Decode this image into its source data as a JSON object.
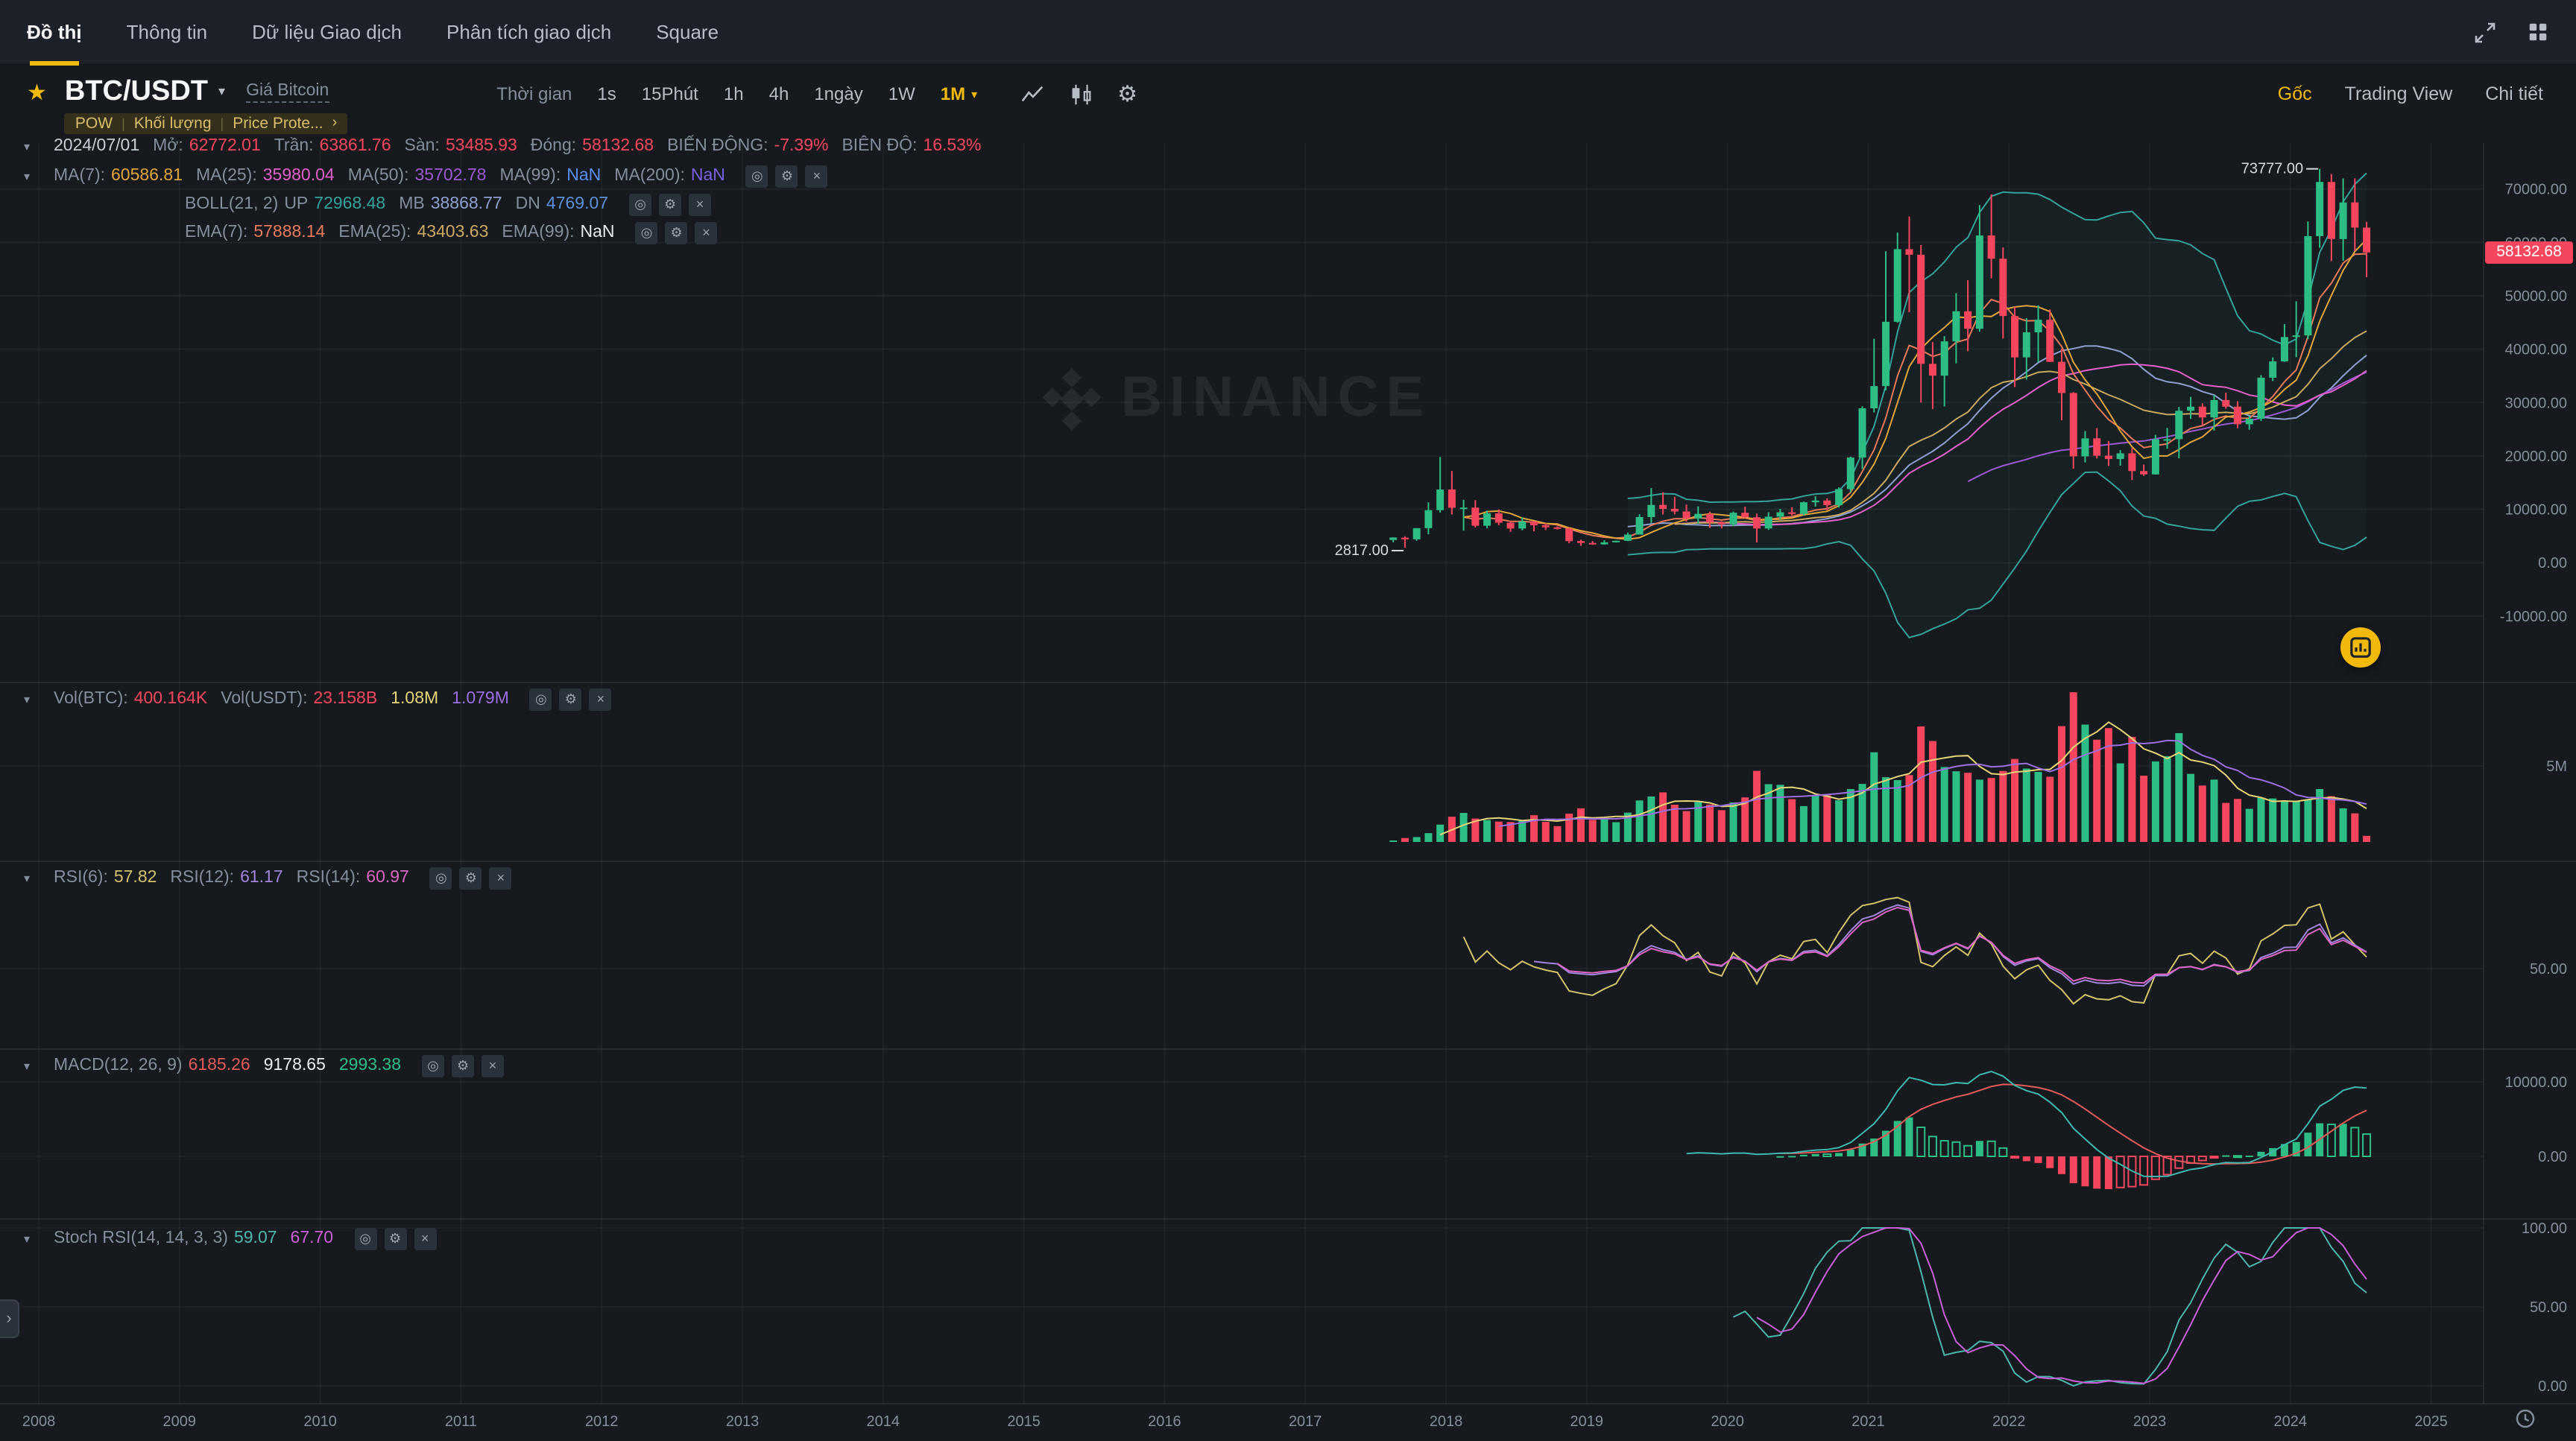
{
  "nav": {
    "items": [
      {
        "label": "Đồ thị",
        "active": true
      },
      {
        "label": "Thông tin"
      },
      {
        "label": "Dữ liệu Giao dịch"
      },
      {
        "label": "Phân tích giao dịch"
      },
      {
        "label": "Square"
      }
    ]
  },
  "toolbar": {
    "symbol": "BTC/USDT",
    "symbol_sub": "Giá Bitcoin",
    "tags": [
      "POW",
      "Khối lượng",
      "Price Prote..."
    ],
    "time_label": "Thời gian",
    "intervals": [
      "1s",
      "15Phút",
      "1h",
      "4h",
      "1ngày",
      "1W",
      "1M"
    ],
    "selected_interval": "1M",
    "right_links": [
      "Gốc",
      "Trading View",
      "Chi tiết"
    ]
  },
  "watermark": "BINANCE",
  "legends": {
    "ohlc": [
      {
        "t": "2024/07/01",
        "c": "#C7CDD6"
      },
      {
        "t": "Mở:",
        "c": "label"
      },
      {
        "t": "62772.01",
        "c": "#F6465D"
      },
      {
        "t": "Trần:",
        "c": "label"
      },
      {
        "t": "63861.76",
        "c": "#F6465D"
      },
      {
        "t": "Sàn:",
        "c": "label"
      },
      {
        "t": "53485.93",
        "c": "#F6465D"
      },
      {
        "t": "Đóng:",
        "c": "label"
      },
      {
        "t": "58132.68",
        "c": "#F6465D"
      },
      {
        "t": "BIẾN ĐỘNG:",
        "c": "label"
      },
      {
        "t": "-7.39%",
        "c": "#F6465D"
      },
      {
        "t": "BIÊN ĐỘ:",
        "c": "label"
      },
      {
        "t": "16.53%",
        "c": "#F6465D"
      }
    ],
    "ma": [
      {
        "t": "MA(7):",
        "c": "label"
      },
      {
        "t": "60586.81",
        "c": "#E0A43C"
      },
      {
        "t": "MA(25):",
        "c": "label"
      },
      {
        "t": "35980.04",
        "c": "#E25FC8"
      },
      {
        "t": "MA(50):",
        "c": "label"
      },
      {
        "t": "35702.78",
        "c": "#9B59D0"
      },
      {
        "t": "MA(99):",
        "c": "label"
      },
      {
        "t": "NaN",
        "c": "#5A8FF0"
      },
      {
        "t": "MA(200):",
        "c": "label"
      },
      {
        "t": "NaN",
        "c": "#7B5FE0"
      }
    ],
    "boll": [
      {
        "t": "BOLL(21, 2)",
        "c": "label"
      },
      {
        "t": "UP",
        "c": "label"
      },
      {
        "t": "72968.48",
        "c": "#35A29A"
      },
      {
        "t": "MB",
        "c": "label"
      },
      {
        "t": "38868.77",
        "c": "#8F9FD0"
      },
      {
        "t": "DN",
        "c": "label"
      },
      {
        "t": "4769.07",
        "c": "#5A8FD6"
      }
    ],
    "ema": [
      {
        "t": "EMA(7):",
        "c": "label"
      },
      {
        "t": "57888.14",
        "c": "#E8795A"
      },
      {
        "t": "EMA(25):",
        "c": "label"
      },
      {
        "t": "43403.63",
        "c": "#C9A861"
      },
      {
        "t": "EMA(99):",
        "c": "label"
      },
      {
        "t": "NaN",
        "c": "#EAECEF"
      }
    ],
    "vol": [
      {
        "t": "Vol(BTC):",
        "c": "label"
      },
      {
        "t": "400.164K",
        "c": "#F6465D"
      },
      {
        "t": "Vol(USDT):",
        "c": "label"
      },
      {
        "t": "23.158B",
        "c": "#F6465D"
      },
      {
        "t": "1.08M",
        "c": "#E5D478"
      },
      {
        "t": "1.079M",
        "c": "#9B6FE0"
      }
    ],
    "rsi": [
      {
        "t": "RSI(6):",
        "c": "label"
      },
      {
        "t": "57.82",
        "c": "#D3C26C"
      },
      {
        "t": "RSI(12):",
        "c": "label"
      },
      {
        "t": "61.17",
        "c": "#A184DB"
      },
      {
        "t": "RSI(14):",
        "c": "label"
      },
      {
        "t": "60.97",
        "c": "#DA65C3"
      }
    ],
    "macd": [
      {
        "t": "MACD(12, 26, 9)",
        "c": "label"
      },
      {
        "t": "6185.26",
        "c": "#E25A5A"
      },
      {
        "t": "9178.65",
        "c": "#EAECEF"
      },
      {
        "t": "2993.38",
        "c": "#2EBD85"
      }
    ],
    "stoch": [
      {
        "t": "Stoch RSI(14, 14, 3, 3)",
        "c": "label"
      },
      {
        "t": "59.07",
        "c": "#4DB6AC"
      },
      {
        "t": "67.70",
        "c": "#C75FD6"
      }
    ]
  },
  "axis": {
    "current_price": "58132.68",
    "price_ticks": [
      {
        "v": 70000,
        "label": "70000.00"
      },
      {
        "v": 60000,
        "label": "60000.00"
      },
      {
        "v": 50000,
        "label": "50000.00"
      },
      {
        "v": 40000,
        "label": "40000.00"
      },
      {
        "v": 30000,
        "label": "30000.00"
      },
      {
        "v": 20000,
        "label": "20000.00"
      },
      {
        "v": 10000,
        "label": "10000.00"
      },
      {
        "v": 0,
        "label": "0.00"
      },
      {
        "v": -10000,
        "label": "-10000.00"
      }
    ],
    "vol_tick": {
      "v": 5,
      "label": "5M"
    },
    "rsi_tick": {
      "v": 50,
      "label": "50.00"
    },
    "macd_ticks": [
      {
        "v": 10000,
        "label": "10000.00"
      },
      {
        "v": 0,
        "label": "0.00"
      }
    ],
    "stoch_ticks": [
      {
        "v": 100,
        "label": "100.00"
      },
      {
        "v": 50,
        "label": "50.00"
      },
      {
        "v": 0,
        "label": "0.00"
      }
    ],
    "years": [
      "2008",
      "2009",
      "2010",
      "2011",
      "2012",
      "2013",
      "2014",
      "2015",
      "2016",
      "2017",
      "2018",
      "2019",
      "2020",
      "2021",
      "2022",
      "2023",
      "2024",
      "2025"
    ]
  },
  "annotations": {
    "high": {
      "t": "2024-03",
      "price": 73777,
      "label": "73777.00"
    },
    "low": {
      "t": "2017-09",
      "price": 2817,
      "label": "2817.00"
    }
  },
  "colors": {
    "accent": "#F0B90B",
    "up": "#2EBD85",
    "down": "#F6465D",
    "ma7": "#E0A43C",
    "ma25": "#E25FC8",
    "ma50": "#9B59D0",
    "ema7": "#E8795A",
    "ema25": "#C9A861",
    "boll": "#35A29A",
    "boll_mid": "#8F9FD0",
    "vol_ma5": "#E5D478",
    "vol_ma10": "#9B6FE0",
    "rsi6": "#D3C26C",
    "rsi12": "#A184DB",
    "rsi14": "#DA65C3",
    "macd_dif": "#3FB8AF",
    "macd_dea": "#E25A5A",
    "stoch_k": "#4DB6AC",
    "stoch_d": "#C75FD6",
    "axis_text": "#848E9C"
  },
  "chart_data": {
    "type": "candlestick",
    "symbol": "BTC/USDT",
    "interval": "1M",
    "overlays": [
      "MA(7)",
      "MA(25)",
      "MA(50)",
      "BOLL(21,2)",
      "EMA(7)",
      "EMA(25)"
    ],
    "panes": [
      "price",
      "volume",
      "RSI(6,12,14)",
      "MACD(12,26,9)",
      "StochRSI(14,14,3,3)"
    ],
    "x_range": [
      2008,
      2025
    ],
    "price_range": [
      -10000,
      75000
    ],
    "candles": [
      [
        "2017-08",
        4261,
        4745,
        3822,
        4724,
        0.09
      ],
      [
        "2017-09",
        4689,
        4939,
        2817,
        4378,
        0.26
      ],
      [
        "2017-10",
        4378,
        6498,
        4110,
        6468,
        0.32
      ],
      [
        "2017-11",
        6463,
        11300,
        5325,
        9838,
        0.58
      ],
      [
        "2017-12",
        9837,
        19798,
        9380,
        13716,
        1.14
      ],
      [
        "2018-01",
        13715,
        17176,
        9035,
        10285,
        1.66
      ],
      [
        "2018-02",
        10285,
        11786,
        6000,
        10326,
        1.91
      ],
      [
        "2018-03",
        10325,
        11710,
        6600,
        6923,
        1.54
      ],
      [
        "2018-04",
        6922,
        9759,
        6430,
        9246,
        1.44
      ],
      [
        "2018-05",
        9246,
        9964,
        7032,
        7494,
        1.34
      ],
      [
        "2018-06",
        7494,
        7779,
        5780,
        6404,
        1.31
      ],
      [
        "2018-07",
        6404,
        8491,
        6070,
        7735,
        1.44
      ],
      [
        "2018-08",
        7735,
        7750,
        5880,
        7011,
        1.76
      ],
      [
        "2018-09",
        7011,
        7410,
        6111,
        6626,
        1.32
      ],
      [
        "2018-10",
        6626,
        6810,
        6205,
        6371,
        1.04
      ],
      [
        "2018-11",
        6369,
        6554,
        3652,
        4041,
        1.86
      ],
      [
        "2018-12",
        4041,
        4312,
        3156,
        3702,
        2.21
      ],
      [
        "2019-01",
        3701,
        4069,
        3349,
        3434,
        1.45
      ],
      [
        "2019-02",
        3434,
        4198,
        3373,
        3814,
        1.55
      ],
      [
        "2019-03",
        3814,
        4129,
        3790,
        4103,
        1.3
      ],
      [
        "2019-04",
        4103,
        5627,
        4054,
        5269,
        1.93
      ],
      [
        "2019-05",
        5269,
        9074,
        5266,
        8555,
        2.73
      ],
      [
        "2019-06",
        8555,
        13970,
        7432,
        10818,
        2.99
      ],
      [
        "2019-07",
        10818,
        13200,
        9049,
        10080,
        3.26
      ],
      [
        "2019-08",
        10080,
        12316,
        9071,
        9594,
        2.45
      ],
      [
        "2019-09",
        9594,
        10898,
        7700,
        8293,
        2.03
      ],
      [
        "2019-10",
        8293,
        10540,
        7293,
        9153,
        2.63
      ],
      [
        "2019-11",
        9152,
        9550,
        6515,
        7542,
        2.46
      ],
      [
        "2019-12",
        7542,
        7750,
        6425,
        7193,
        2.09
      ],
      [
        "2020-01",
        7195,
        9578,
        6850,
        9350,
        2.6
      ],
      [
        "2020-02",
        9350,
        10500,
        8407,
        8523,
        2.93
      ],
      [
        "2020-03",
        8523,
        9188,
        3782,
        6410,
        4.68
      ],
      [
        "2020-04",
        6410,
        9460,
        6135,
        8620,
        3.8
      ],
      [
        "2020-05",
        8620,
        10067,
        8101,
        9437,
        3.76
      ],
      [
        "2020-06",
        9437,
        10380,
        8830,
        9135,
        2.82
      ],
      [
        "2020-07",
        9135,
        11444,
        8900,
        11323,
        2.36
      ],
      [
        "2020-08",
        11323,
        12468,
        10500,
        11649,
        3.06
      ],
      [
        "2020-09",
        11649,
        12050,
        9825,
        10776,
        3.07
      ],
      [
        "2020-10",
        10776,
        14100,
        10374,
        13791,
        2.74
      ],
      [
        "2020-11",
        13791,
        19863,
        13195,
        19695,
        3.48
      ],
      [
        "2020-12",
        19695,
        29300,
        17572,
        28923,
        3.82
      ],
      [
        "2021-01",
        28923,
        41950,
        28130,
        33092,
        5.9
      ],
      [
        "2021-02",
        33092,
        58352,
        32296,
        45135,
        4.26
      ],
      [
        "2021-03",
        45134,
        61844,
        44950,
        58740,
        4.07
      ],
      [
        "2021-04",
        58739,
        64854,
        46930,
        57694,
        4.4
      ],
      [
        "2021-05",
        57694,
        59500,
        30000,
        37253,
        7.6
      ],
      [
        "2021-06",
        37253,
        41330,
        28805,
        35045,
        6.64
      ],
      [
        "2021-07",
        35045,
        42448,
        29278,
        41461,
        4.93
      ],
      [
        "2021-08",
        41461,
        50500,
        37332,
        47100,
        4.65
      ],
      [
        "2021-09",
        47100,
        52920,
        39600,
        43824,
        4.55
      ],
      [
        "2021-10",
        43820,
        67000,
        43283,
        61299,
        4.1
      ],
      [
        "2021-11",
        61299,
        69000,
        53256,
        56950,
        4.21
      ],
      [
        "2021-12",
        56950,
        59053,
        42000,
        46216,
        4.67
      ],
      [
        "2022-01",
        46216,
        47990,
        32917,
        38466,
        5.46
      ],
      [
        "2022-02",
        38466,
        45821,
        34322,
        43160,
        4.83
      ],
      [
        "2022-03",
        43160,
        48189,
        37555,
        45510,
        4.61
      ],
      [
        "2022-04",
        45510,
        47444,
        37578,
        37630,
        4.29
      ],
      [
        "2022-05",
        37630,
        40071,
        26700,
        31792,
        7.62
      ],
      [
        "2022-06",
        31792,
        31957,
        17593,
        19924,
        9.85
      ],
      [
        "2022-07",
        19924,
        24668,
        18781,
        23293,
        7.72
      ],
      [
        "2022-08",
        23293,
        25211,
        19520,
        20048,
        6.73
      ],
      [
        "2022-09",
        20048,
        22799,
        18125,
        19424,
        7.49
      ],
      [
        "2022-10",
        19423,
        21085,
        18190,
        20490,
        5.17
      ],
      [
        "2022-11",
        20490,
        21480,
        15476,
        17164,
        6.91
      ],
      [
        "2022-12",
        17164,
        18387,
        16256,
        16542,
        4.36
      ],
      [
        "2023-01",
        16541,
        23960,
        16499,
        23125,
        5.3
      ],
      [
        "2023-02",
        23125,
        25250,
        21351,
        23141,
        5.64
      ],
      [
        "2023-03",
        23141,
        29184,
        19549,
        28465,
        7.16
      ],
      [
        "2023-04",
        28465,
        31059,
        26942,
        29233,
        4.48
      ],
      [
        "2023-05",
        29233,
        29840,
        25751,
        27210,
        3.71
      ],
      [
        "2023-06",
        27210,
        31431,
        24750,
        30472,
        4.1
      ],
      [
        "2023-07",
        30472,
        31852,
        28850,
        29230,
        2.57
      ],
      [
        "2023-08",
        29230,
        30242,
        25166,
        25932,
        2.83
      ],
      [
        "2023-09",
        25932,
        27483,
        24900,
        26962,
        2.18
      ],
      [
        "2023-10",
        26962,
        35150,
        26538,
        34657,
        2.91
      ],
      [
        "2023-11",
        34656,
        38450,
        34027,
        37712,
        2.86
      ],
      [
        "2023-12",
        37712,
        44700,
        37615,
        42283,
        2.72
      ],
      [
        "2024-01",
        42283,
        48969,
        38501,
        42582,
        2.65
      ],
      [
        "2024-02",
        42582,
        63933,
        41884,
        61179,
        2.77
      ],
      [
        "2024-03",
        61179,
        73777,
        59005,
        71333,
        3.48
      ],
      [
        "2024-04",
        71333,
        72797,
        56500,
        60636,
        3.01
      ],
      [
        "2024-05",
        60636,
        71979,
        56552,
        67491,
        2.21
      ],
      [
        "2024-06",
        67491,
        71997,
        58402,
        62772,
        1.88
      ],
      [
        "2024-07",
        62772,
        63861.76,
        53485.93,
        58132.68,
        0.4
      ]
    ]
  }
}
